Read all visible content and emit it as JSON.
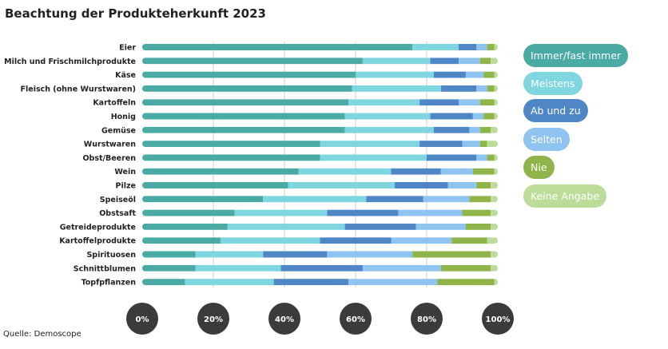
{
  "chart_data": {
    "type": "bar",
    "orientation": "horizontal",
    "stacked": true,
    "percent": true,
    "title": "Beachtung der Produkteherkunft 2023",
    "source": "Quelle: Demoscope",
    "xlim": [
      0,
      100
    ],
    "x_ticks": [
      "0%",
      "20%",
      "40%",
      "60%",
      "80%",
      "100%"
    ],
    "grid": true,
    "legend_position": "right",
    "categories": [
      "Eier",
      "Milch und Frischmilchprodukte",
      "Käse",
      "Fleisch (ohne Wurstwaren)",
      "Kartoffeln",
      "Honig",
      "Gemüse",
      "Wurstwaren",
      "Obst/Beeren",
      "Wein",
      "Pilze",
      "Speiseöl",
      "Obstsaft",
      "Getreideprodukte",
      "Kartoffelprodukte",
      "Spirituosen",
      "Schnittblumen",
      "Topfpflanzen"
    ],
    "series": [
      {
        "name": "Immer/fast immer",
        "color": "#4aaba5",
        "values": [
          76,
          62,
          60,
          59,
          58,
          57,
          57,
          50,
          50,
          44,
          41,
          34,
          26,
          24,
          22,
          15,
          15,
          12
        ]
      },
      {
        "name": "Meistens",
        "color": "#7fd6e1",
        "values": [
          13,
          19,
          22,
          25,
          20,
          24,
          25,
          28,
          30,
          26,
          30,
          29,
          26,
          33,
          28,
          19,
          24,
          25
        ]
      },
      {
        "name": "Ab und zu",
        "color": "#4f86c6",
        "values": [
          5,
          8,
          9,
          10,
          11,
          12,
          10,
          12,
          14,
          14,
          15,
          16,
          20,
          20,
          20,
          18,
          23,
          21
        ]
      },
      {
        "name": "Selten",
        "color": "#8ec4ef",
        "values": [
          3,
          6,
          5,
          3,
          6,
          3,
          3,
          5,
          3,
          9,
          8,
          13,
          18,
          14,
          17,
          24,
          22,
          25
        ]
      },
      {
        "name": "Nie",
        "color": "#8fb449",
        "values": [
          2,
          3,
          3,
          2,
          4,
          3,
          3,
          2,
          2,
          6,
          4,
          6,
          8,
          7,
          10,
          22,
          14,
          16
        ]
      },
      {
        "name": "Keine Angabe",
        "color": "#bcdc9a",
        "values": [
          1,
          2,
          1,
          1,
          1,
          1,
          2,
          3,
          1,
          1,
          2,
          2,
          2,
          2,
          3,
          2,
          2,
          1
        ]
      }
    ],
    "legend_text_colors": [
      "#ffffff",
      "#ffffff",
      "#ffffff",
      "#ffffff",
      "#ffffff",
      "#ffffff"
    ],
    "tick_circle_color": "#3b3b3b"
  }
}
